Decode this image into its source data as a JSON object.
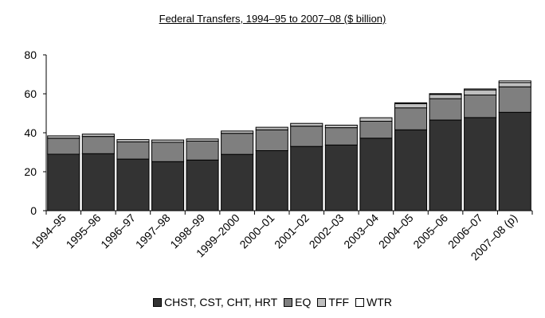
{
  "chart_data": {
    "type": "bar",
    "stacked": true,
    "title": "Federal Transfers, 1994–95 to 2007–08 ($ billion)",
    "categories": [
      "1994–95",
      "1995–96",
      "1996–97",
      "1997–98",
      "1998–99",
      "1999–2000",
      "2000–01",
      "2001–02",
      "2002–03",
      "2003–04",
      "2004–05",
      "2005–06",
      "2006–07",
      "2007–08 (p)"
    ],
    "ylim": [
      0,
      80
    ],
    "yticks": [
      0,
      20,
      40,
      60,
      80
    ],
    "legend_position": "bottom",
    "grid": false,
    "series": [
      {
        "name": "CHST, CST, CHT, HRT",
        "color": "#333333",
        "values": [
          29,
          29.3,
          26.5,
          25.2,
          26,
          28.9,
          30.8,
          33,
          33.7,
          37.2,
          41.5,
          46.5,
          47.8,
          50.5
        ]
      },
      {
        "name": "EQ",
        "color": "#7f7f7f",
        "values": [
          8.2,
          8.8,
          8.8,
          9.9,
          9.7,
          10.8,
          10.7,
          10.4,
          8.9,
          8.7,
          11.3,
          11,
          11.6,
          13.1
        ]
      },
      {
        "name": "TFF",
        "color": "#bfbfbf",
        "values": [
          1.2,
          1.2,
          1.2,
          1.2,
          1.1,
          1.2,
          1.3,
          1.4,
          1.3,
          1.8,
          2.2,
          2.2,
          2.6,
          2.2
        ]
      },
      {
        "name": "WTR",
        "color": "#ffffff",
        "values": [
          0,
          0,
          0,
          0,
          0,
          0,
          0,
          0,
          0,
          0,
          0.4,
          0.4,
          0.5,
          0.8
        ]
      }
    ]
  }
}
